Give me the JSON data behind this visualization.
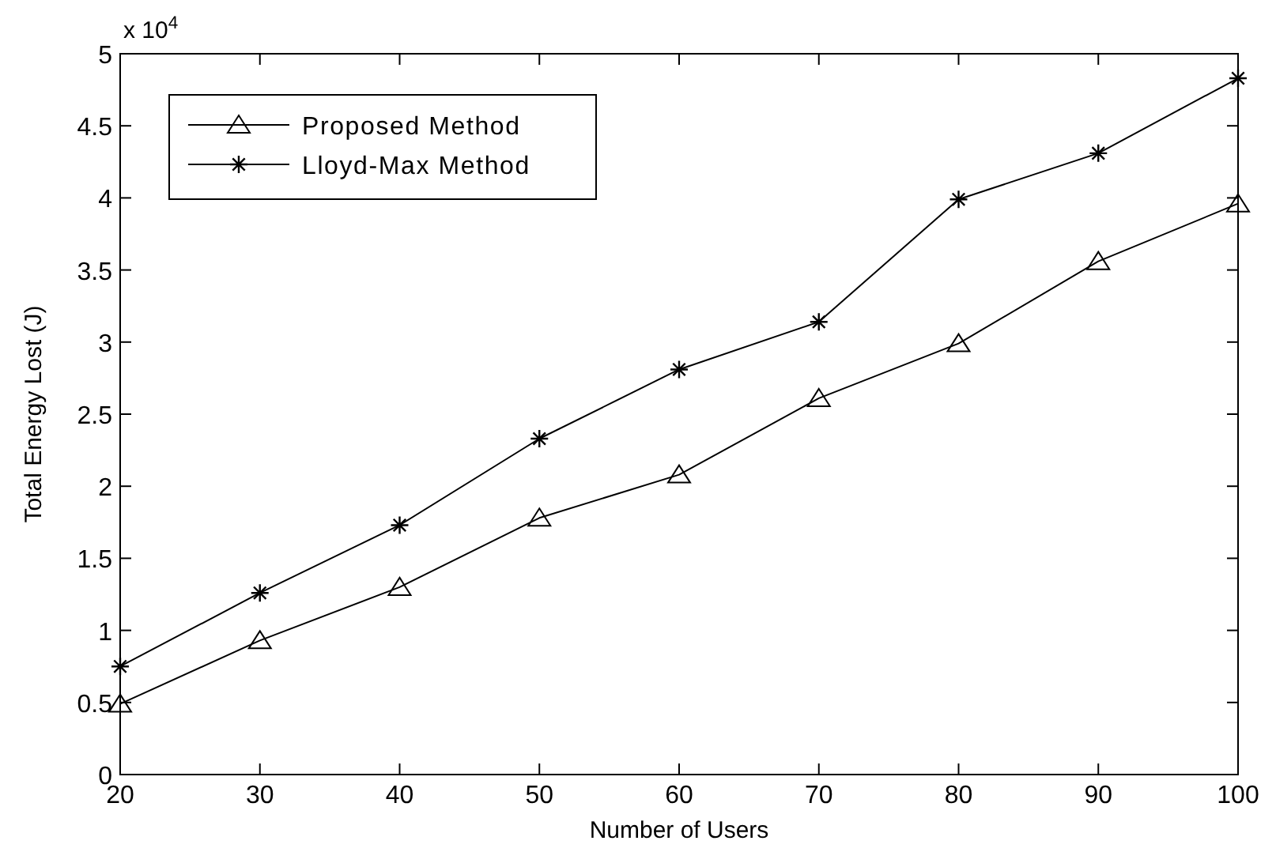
{
  "chart_data": {
    "type": "line",
    "xlabel": "Number of Users",
    "ylabel": "Total Energy Lost (J)",
    "annotations": [
      "x 10$^{4}$"
    ],
    "x": [
      20,
      30,
      40,
      50,
      60,
      70,
      80,
      90,
      100
    ],
    "series": [
      {
        "name": "Proposed Method",
        "color": "#000000",
        "marker": "triangle",
        "values": [
          0.49,
          0.93,
          1.3,
          1.78,
          2.08,
          2.61,
          2.99,
          3.56,
          3.96
        ]
      },
      {
        "name": "Lloyd-Max Method",
        "color": "#000000",
        "marker": "cross",
        "values": [
          0.75,
          1.26,
          1.73,
          2.33,
          2.81,
          3.14,
          3.99,
          4.31,
          4.83
        ]
      }
    ],
    "xlim": [
      20,
      100
    ],
    "xticks": [
      20,
      30,
      40,
      50,
      60,
      70,
      80,
      90,
      100
    ],
    "ylim": [
      0,
      5
    ],
    "yticks": [
      0,
      0.5,
      1,
      1.5,
      2,
      2.5,
      3,
      3.5,
      4,
      4.5,
      5
    ],
    "grid": false,
    "legend": "top left",
    "line_style": "solid"
  }
}
